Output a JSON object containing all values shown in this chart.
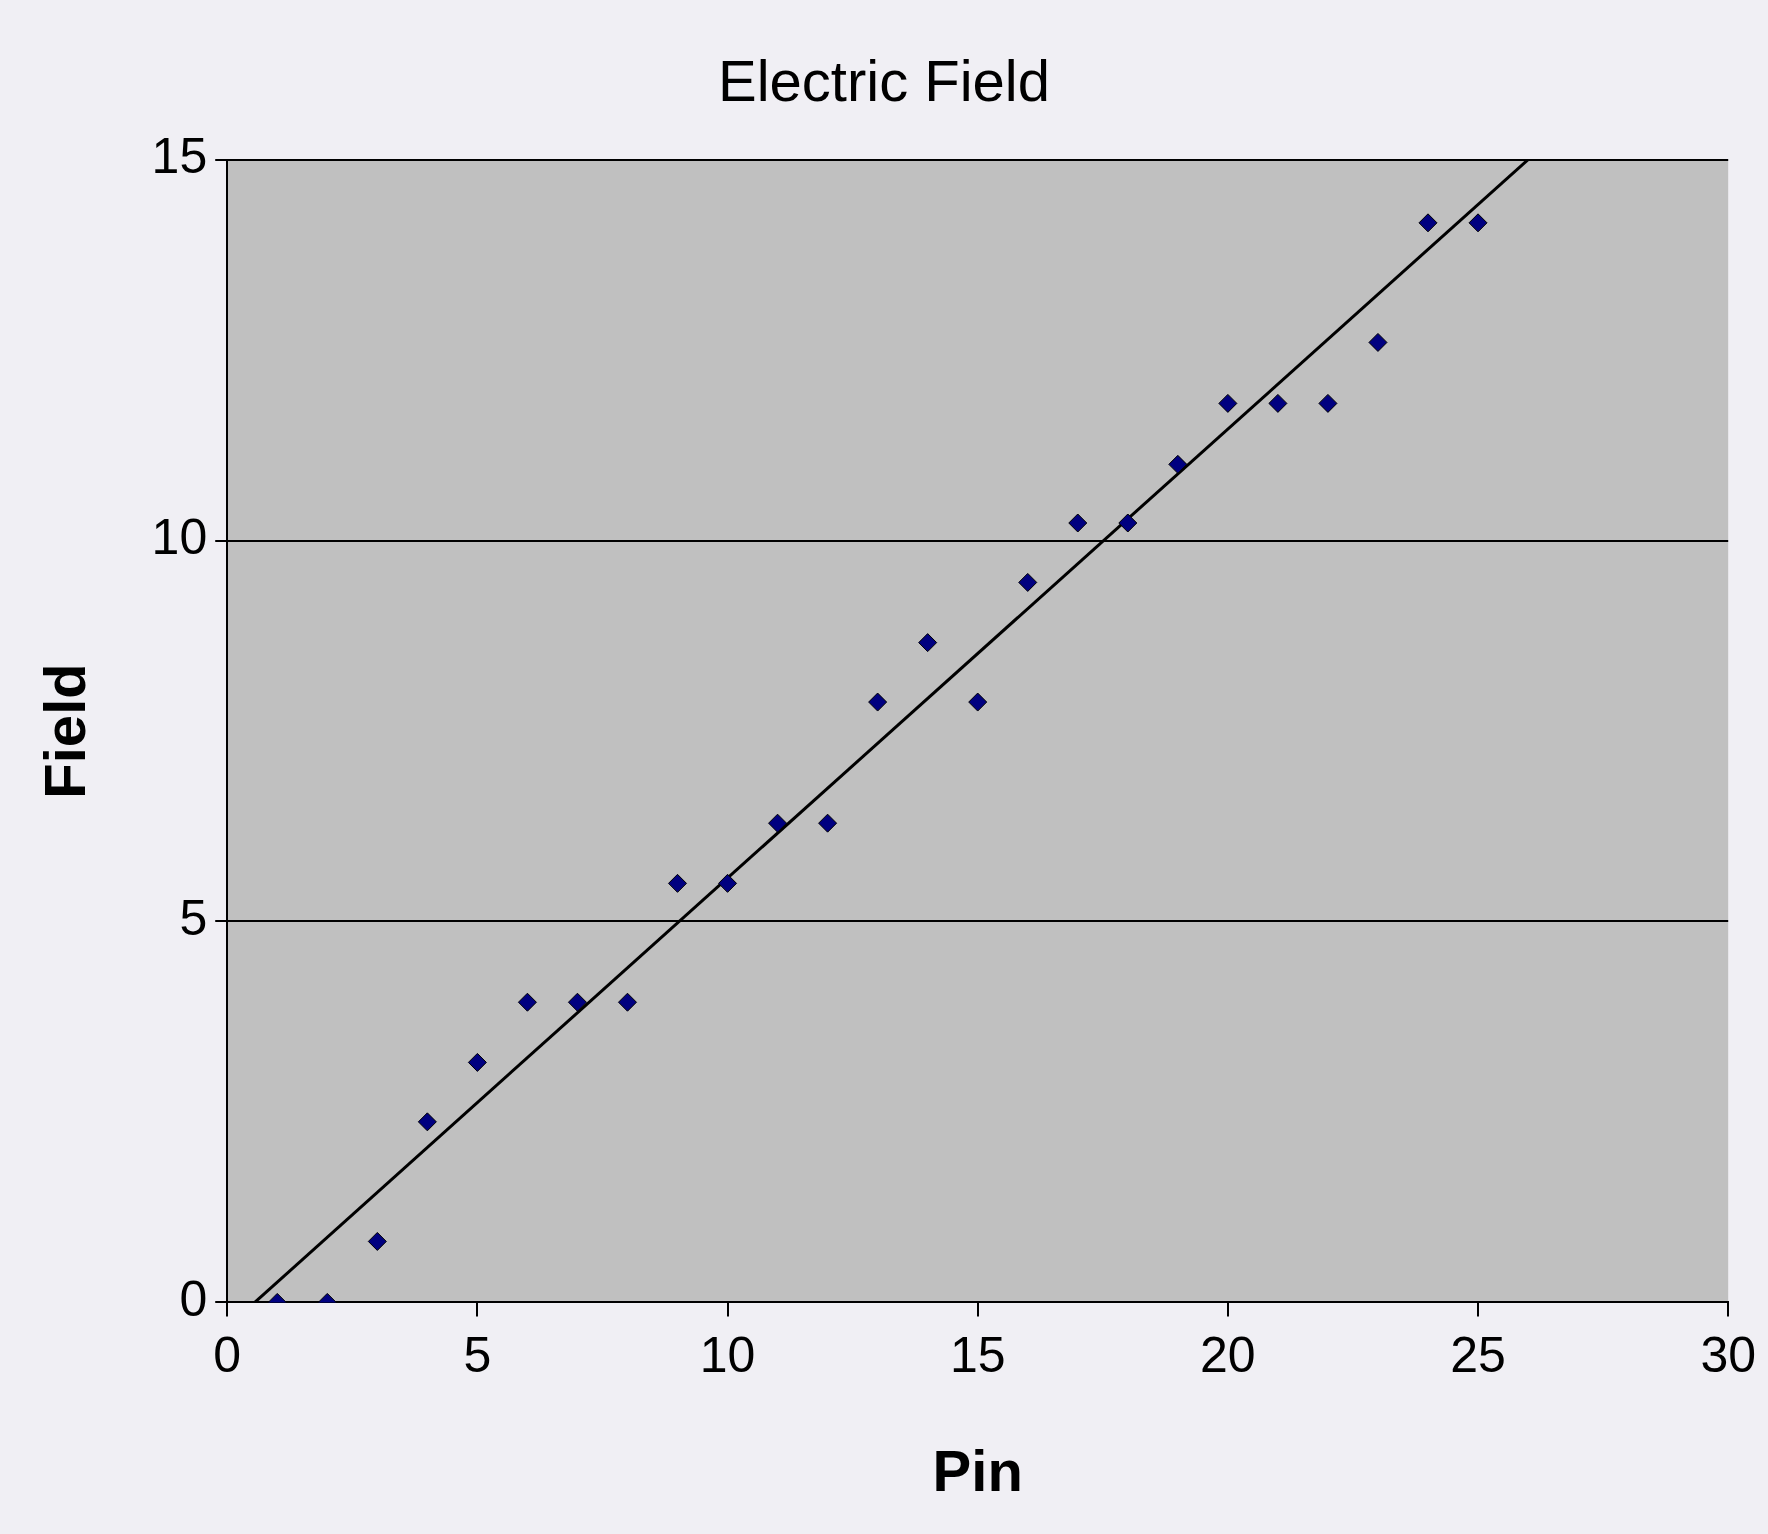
{
  "chart_data": {
    "type": "scatter",
    "title": "Electric Field",
    "xlabel": "Pin",
    "ylabel": "Field",
    "xlim": [
      0,
      30
    ],
    "xticks": [
      0,
      5,
      10,
      15,
      20,
      25,
      30
    ],
    "ylim": [
      0,
      15
    ],
    "yticks": [
      0,
      5,
      10,
      15
    ],
    "grid": "y",
    "marker": "diamond",
    "legend": false,
    "series": [
      {
        "type": "scatter",
        "color": "#000080",
        "x": [
          1,
          2,
          3,
          4,
          5,
          6,
          7,
          8,
          9,
          10,
          11,
          12,
          13,
          14,
          15,
          16,
          17,
          18,
          19,
          20,
          21,
          22,
          23,
          24,
          25
        ],
        "values": [
          0,
          0,
          0.8,
          2.37,
          3.15,
          3.94,
          3.94,
          3.94,
          5.5,
          5.5,
          6.29,
          6.29,
          7.88,
          8.66,
          7.88,
          9.45,
          10.23,
          10.23,
          11,
          11.8,
          11.8,
          11.8,
          12.6,
          14.17,
          14.17
        ]
      },
      {
        "type": "line",
        "color": "#000000",
        "x": [
          0.55,
          26
        ],
        "values": [
          0,
          15
        ],
        "marker": "none"
      }
    ]
  }
}
